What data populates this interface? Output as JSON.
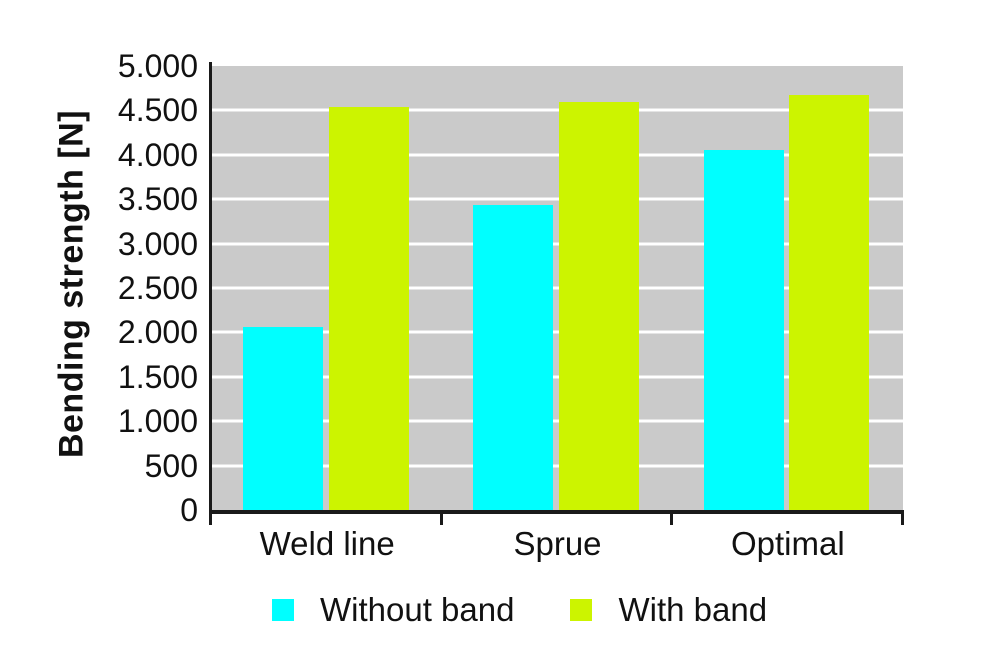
{
  "chart_data": {
    "type": "bar",
    "title": "",
    "ylabel": "Bending strength [N]",
    "categories": [
      "Weld line",
      "Sprue",
      "Optimal"
    ],
    "series": [
      {
        "name": "Without band",
        "color": "#00ffff",
        "values": [
          2060,
          3440,
          4050
        ]
      },
      {
        "name": "With band",
        "color": "#ccf400",
        "values": [
          4540,
          4590,
          4670
        ]
      }
    ],
    "ylim": [
      0,
      5000
    ],
    "ytick_step": 500,
    "ytick_labels": [
      "0",
      "500",
      "1.000",
      "1.500",
      "2.000",
      "2.500",
      "3.000",
      "3.500",
      "4.000",
      "4.500",
      "5.000"
    ],
    "grid": "horizontal",
    "gridline_color": "#ffffff",
    "plot_background": "#cacaca",
    "axis_color": "#1a1a1a",
    "text_color": "#111111",
    "legend_position": "bottom"
  }
}
